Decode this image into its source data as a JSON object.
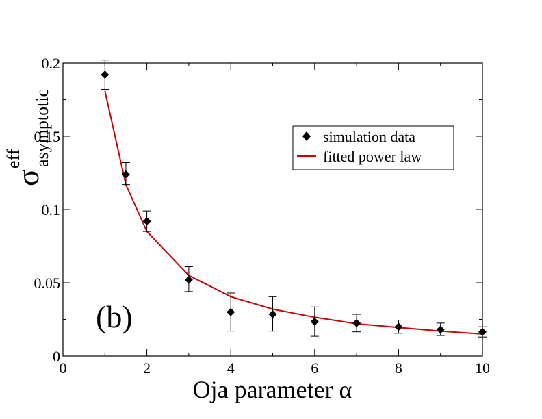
{
  "chart_data": {
    "type": "scatter",
    "panel_label": "(b)",
    "xlabel": "Oja parameter α",
    "ylabel": {
      "symbol": "σ",
      "superscript": "eff",
      "subscript": "asymptotic"
    },
    "xlim": [
      0,
      10
    ],
    "ylim": [
      0,
      0.2
    ],
    "xticks": [
      0,
      2,
      4,
      6,
      8,
      10
    ],
    "xtick_labels": [
      "0",
      "2",
      "4",
      "6",
      "8",
      "10"
    ],
    "yticks": [
      0,
      0.05,
      0.1,
      0.15,
      0.2
    ],
    "ytick_labels": [
      "0",
      "0.05",
      "0.1",
      "0.15",
      "0.2"
    ],
    "legend": {
      "position": "upper-right",
      "entries": [
        "simulation data",
        "fitted power law"
      ]
    },
    "series": [
      {
        "name": "simulation data",
        "kind": "scatter-errorbar",
        "marker": "diamond",
        "color": "#000000",
        "x": [
          1,
          1.5,
          2,
          3,
          4,
          5,
          6,
          7,
          8,
          9,
          10
        ],
        "y": [
          0.192,
          0.124,
          0.092,
          0.052,
          0.03,
          0.0285,
          0.0235,
          0.0225,
          0.02,
          0.018,
          0.0165
        ],
        "err_low": [
          0.182,
          0.117,
          0.085,
          0.044,
          0.017,
          0.017,
          0.0135,
          0.0165,
          0.0155,
          0.014,
          0.013
        ],
        "err_high": [
          0.202,
          0.132,
          0.099,
          0.061,
          0.043,
          0.0405,
          0.0335,
          0.0285,
          0.0245,
          0.0225,
          0.02
        ]
      },
      {
        "name": "fitted power law",
        "kind": "line",
        "color": "#cc0000",
        "x": [
          1,
          1.5,
          2,
          3,
          4,
          5,
          6,
          7,
          8,
          9,
          10
        ],
        "y": [
          0.181,
          0.117,
          0.085,
          0.055,
          0.0405,
          0.032,
          0.0265,
          0.022,
          0.0195,
          0.017,
          0.015
        ]
      }
    ]
  }
}
